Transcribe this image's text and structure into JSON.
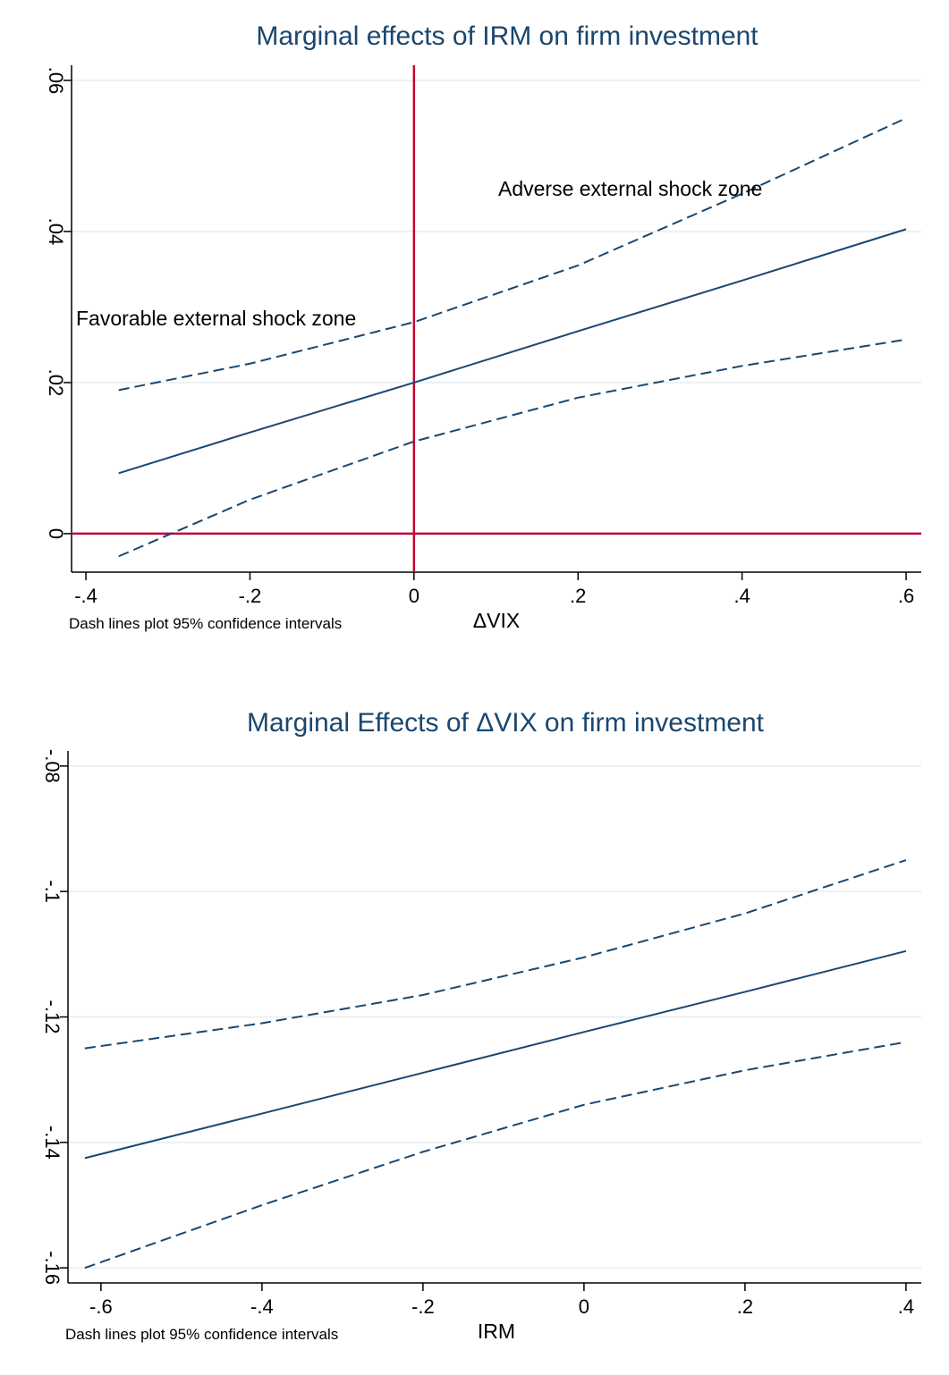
{
  "chart_data": [
    {
      "type": "line",
      "title": "Marginal effects of IRM on firm investment",
      "x_label": "ΔVIX",
      "note": "Dash lines plot 95% confidence intervals",
      "annotations": [
        "Adverse external shock zone",
        "Favorable external shock zone"
      ],
      "x": [
        -0.36,
        -0.2,
        0,
        0.2,
        0.4,
        0.6
      ],
      "series": [
        {
          "color": "#1a476f",
          "dashed": false,
          "values": [
            0.008,
            0.0134,
            0.02,
            0.0268,
            0.0335,
            0.0403
          ]
        },
        {
          "color": "#1a476f",
          "dashed": true,
          "values": [
            0.019,
            0.0225,
            0.028,
            0.0355,
            0.045,
            0.055
          ]
        },
        {
          "color": "#1a476f",
          "dashed": true,
          "values": [
            -0.003,
            0.0045,
            0.0122,
            0.018,
            0.0222,
            0.0257
          ]
        }
      ],
      "xline": 0,
      "yline": 0,
      "reference_color": "#c10534",
      "xlim": [
        -0.4175,
        0.6185
      ],
      "xticks": [
        {
          "value": -0.4,
          "label": "-.4"
        },
        {
          "value": -0.2,
          "label": "-.2"
        },
        0,
        {
          "value": 0.2,
          "label": ".2"
        },
        {
          "value": 0.4,
          "label": ".4"
        },
        {
          "value": 0.6,
          "label": ".6"
        }
      ],
      "ylim": [
        -0.0051,
        0.062
      ],
      "yticks": [
        0,
        {
          "value": 0.02,
          "label": ".02"
        },
        {
          "value": 0.04,
          "label": ".04"
        },
        {
          "value": 0.06,
          "label": ".06"
        }
      ],
      "grid": true
    },
    {
      "type": "line",
      "title": "Marginal Effects of ΔVIX on firm investment",
      "x_label": "IRM",
      "note": "Dash lines plot 95% confidence intervals",
      "x": [
        -0.62,
        -0.4,
        -0.2,
        0,
        0.2,
        0.4
      ],
      "series": [
        {
          "color": "#1a476f",
          "dashed": false,
          "values": [
            -0.1425,
            -0.1354,
            -0.1289,
            -0.1224,
            -0.116,
            -0.1095
          ]
        },
        {
          "color": "#1a476f",
          "dashed": true,
          "values": [
            -0.125,
            -0.121,
            -0.1165,
            -0.1105,
            -0.1035,
            -0.095
          ]
        },
        {
          "color": "#1a476f",
          "dashed": true,
          "values": [
            -0.16,
            -0.15,
            -0.1415,
            -0.134,
            -0.1285,
            -0.124
          ]
        }
      ],
      "xlim": [
        -0.641,
        0.419
      ],
      "xticks": [
        {
          "value": -0.6,
          "label": "-.6"
        },
        {
          "value": -0.4,
          "label": "-.4"
        },
        {
          "value": -0.2,
          "label": "-.2"
        },
        0,
        {
          "value": 0.2,
          "label": ".2"
        },
        {
          "value": 0.4,
          "label": ".4"
        }
      ],
      "ylim": [
        -0.1624,
        -0.0776
      ],
      "yticks": [
        {
          "value": -0.16,
          "label": "-.16"
        },
        {
          "value": -0.14,
          "label": "-.14"
        },
        {
          "value": -0.12,
          "label": "-.12"
        },
        {
          "value": -0.1,
          "label": "-.1"
        },
        {
          "value": -0.08,
          "label": "-.08"
        }
      ],
      "grid": true
    }
  ]
}
